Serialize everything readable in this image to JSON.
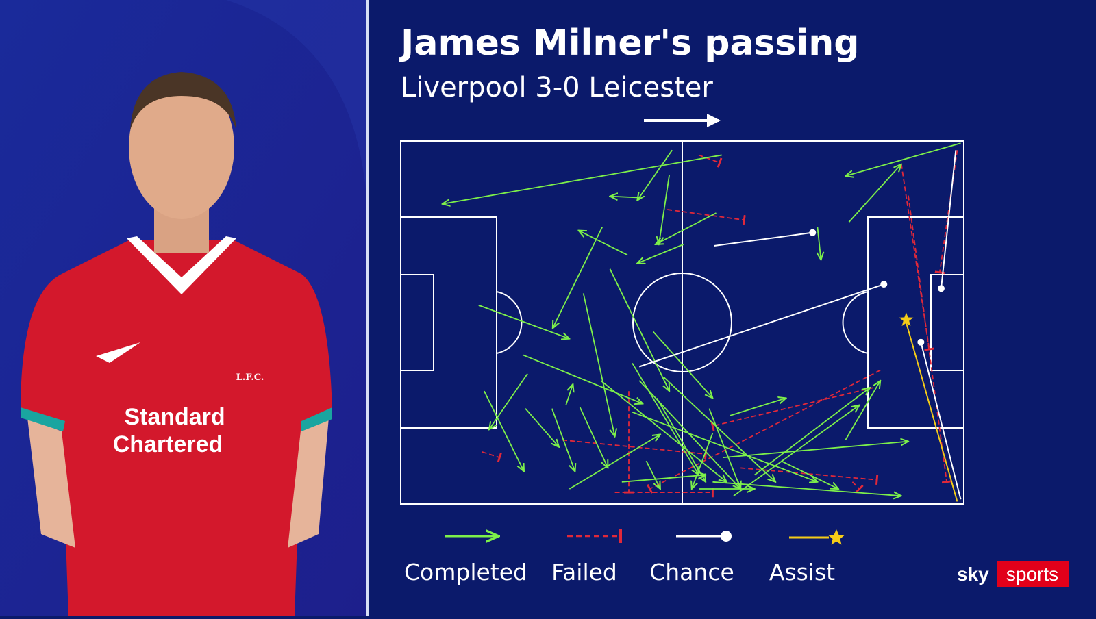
{
  "header": {
    "title": "James Milner's passing",
    "subtitle": "Liverpool 3-0 Leicester"
  },
  "legend": [
    "Completed",
    "Failed",
    "Chance",
    "Assist"
  ],
  "logo": {
    "sky": "sky",
    "sports": "sports"
  },
  "shirt": {
    "sponsor_line1": "Standard",
    "sponsor_line2": "Chartered",
    "crest": "L.F.C."
  }
}
